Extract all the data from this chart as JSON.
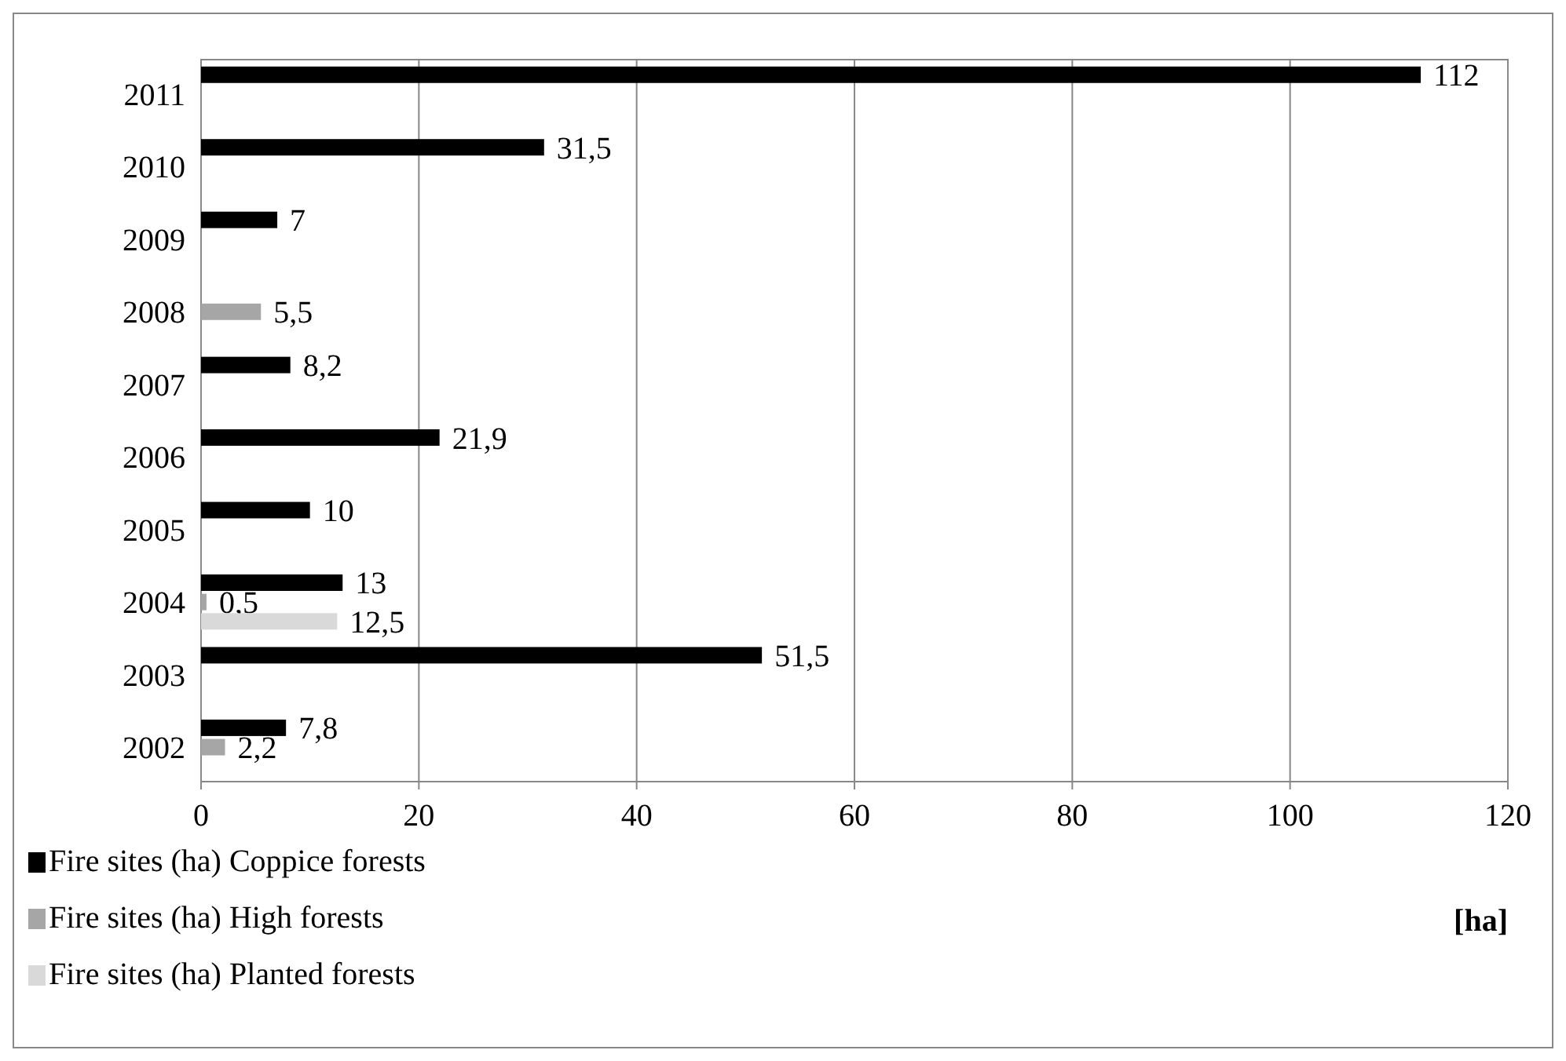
{
  "chart_data": {
    "type": "bar",
    "orientation": "horizontal",
    "xlabel": "[ha]",
    "categories": [
      "2011",
      "2010",
      "2009",
      "2008",
      "2007",
      "2006",
      "2005",
      "2004",
      "2003",
      "2002"
    ],
    "series": [
      {
        "name": "Fire sites (ha) Coppice forests",
        "color": "#000000",
        "values": [
          112,
          31.5,
          7,
          null,
          8.2,
          21.9,
          10,
          13,
          51.5,
          7.8
        ],
        "value_labels": [
          "112",
          "31,5",
          "7",
          null,
          "8,2",
          "21,9",
          "10",
          "13",
          "51,5",
          "7,8"
        ]
      },
      {
        "name": "Fire sites (ha) High forests",
        "color": "#a6a6a6",
        "values": [
          null,
          null,
          null,
          5.5,
          null,
          null,
          null,
          0.5,
          null,
          2.2
        ],
        "value_labels": [
          null,
          null,
          null,
          "5,5",
          null,
          null,
          null,
          "0,5",
          null,
          "2,2"
        ]
      },
      {
        "name": "Fire sites (ha) Planted forests",
        "color": "#d9d9d9",
        "values": [
          null,
          null,
          null,
          null,
          null,
          null,
          null,
          12.5,
          null,
          null
        ],
        "value_labels": [
          null,
          null,
          null,
          null,
          null,
          null,
          null,
          "12,5",
          null,
          null
        ]
      }
    ],
    "xlim": [
      0,
      120
    ],
    "xticks": [
      0,
      20,
      40,
      60,
      80,
      100,
      120
    ],
    "grid": "x",
    "legend": "bottom left"
  }
}
